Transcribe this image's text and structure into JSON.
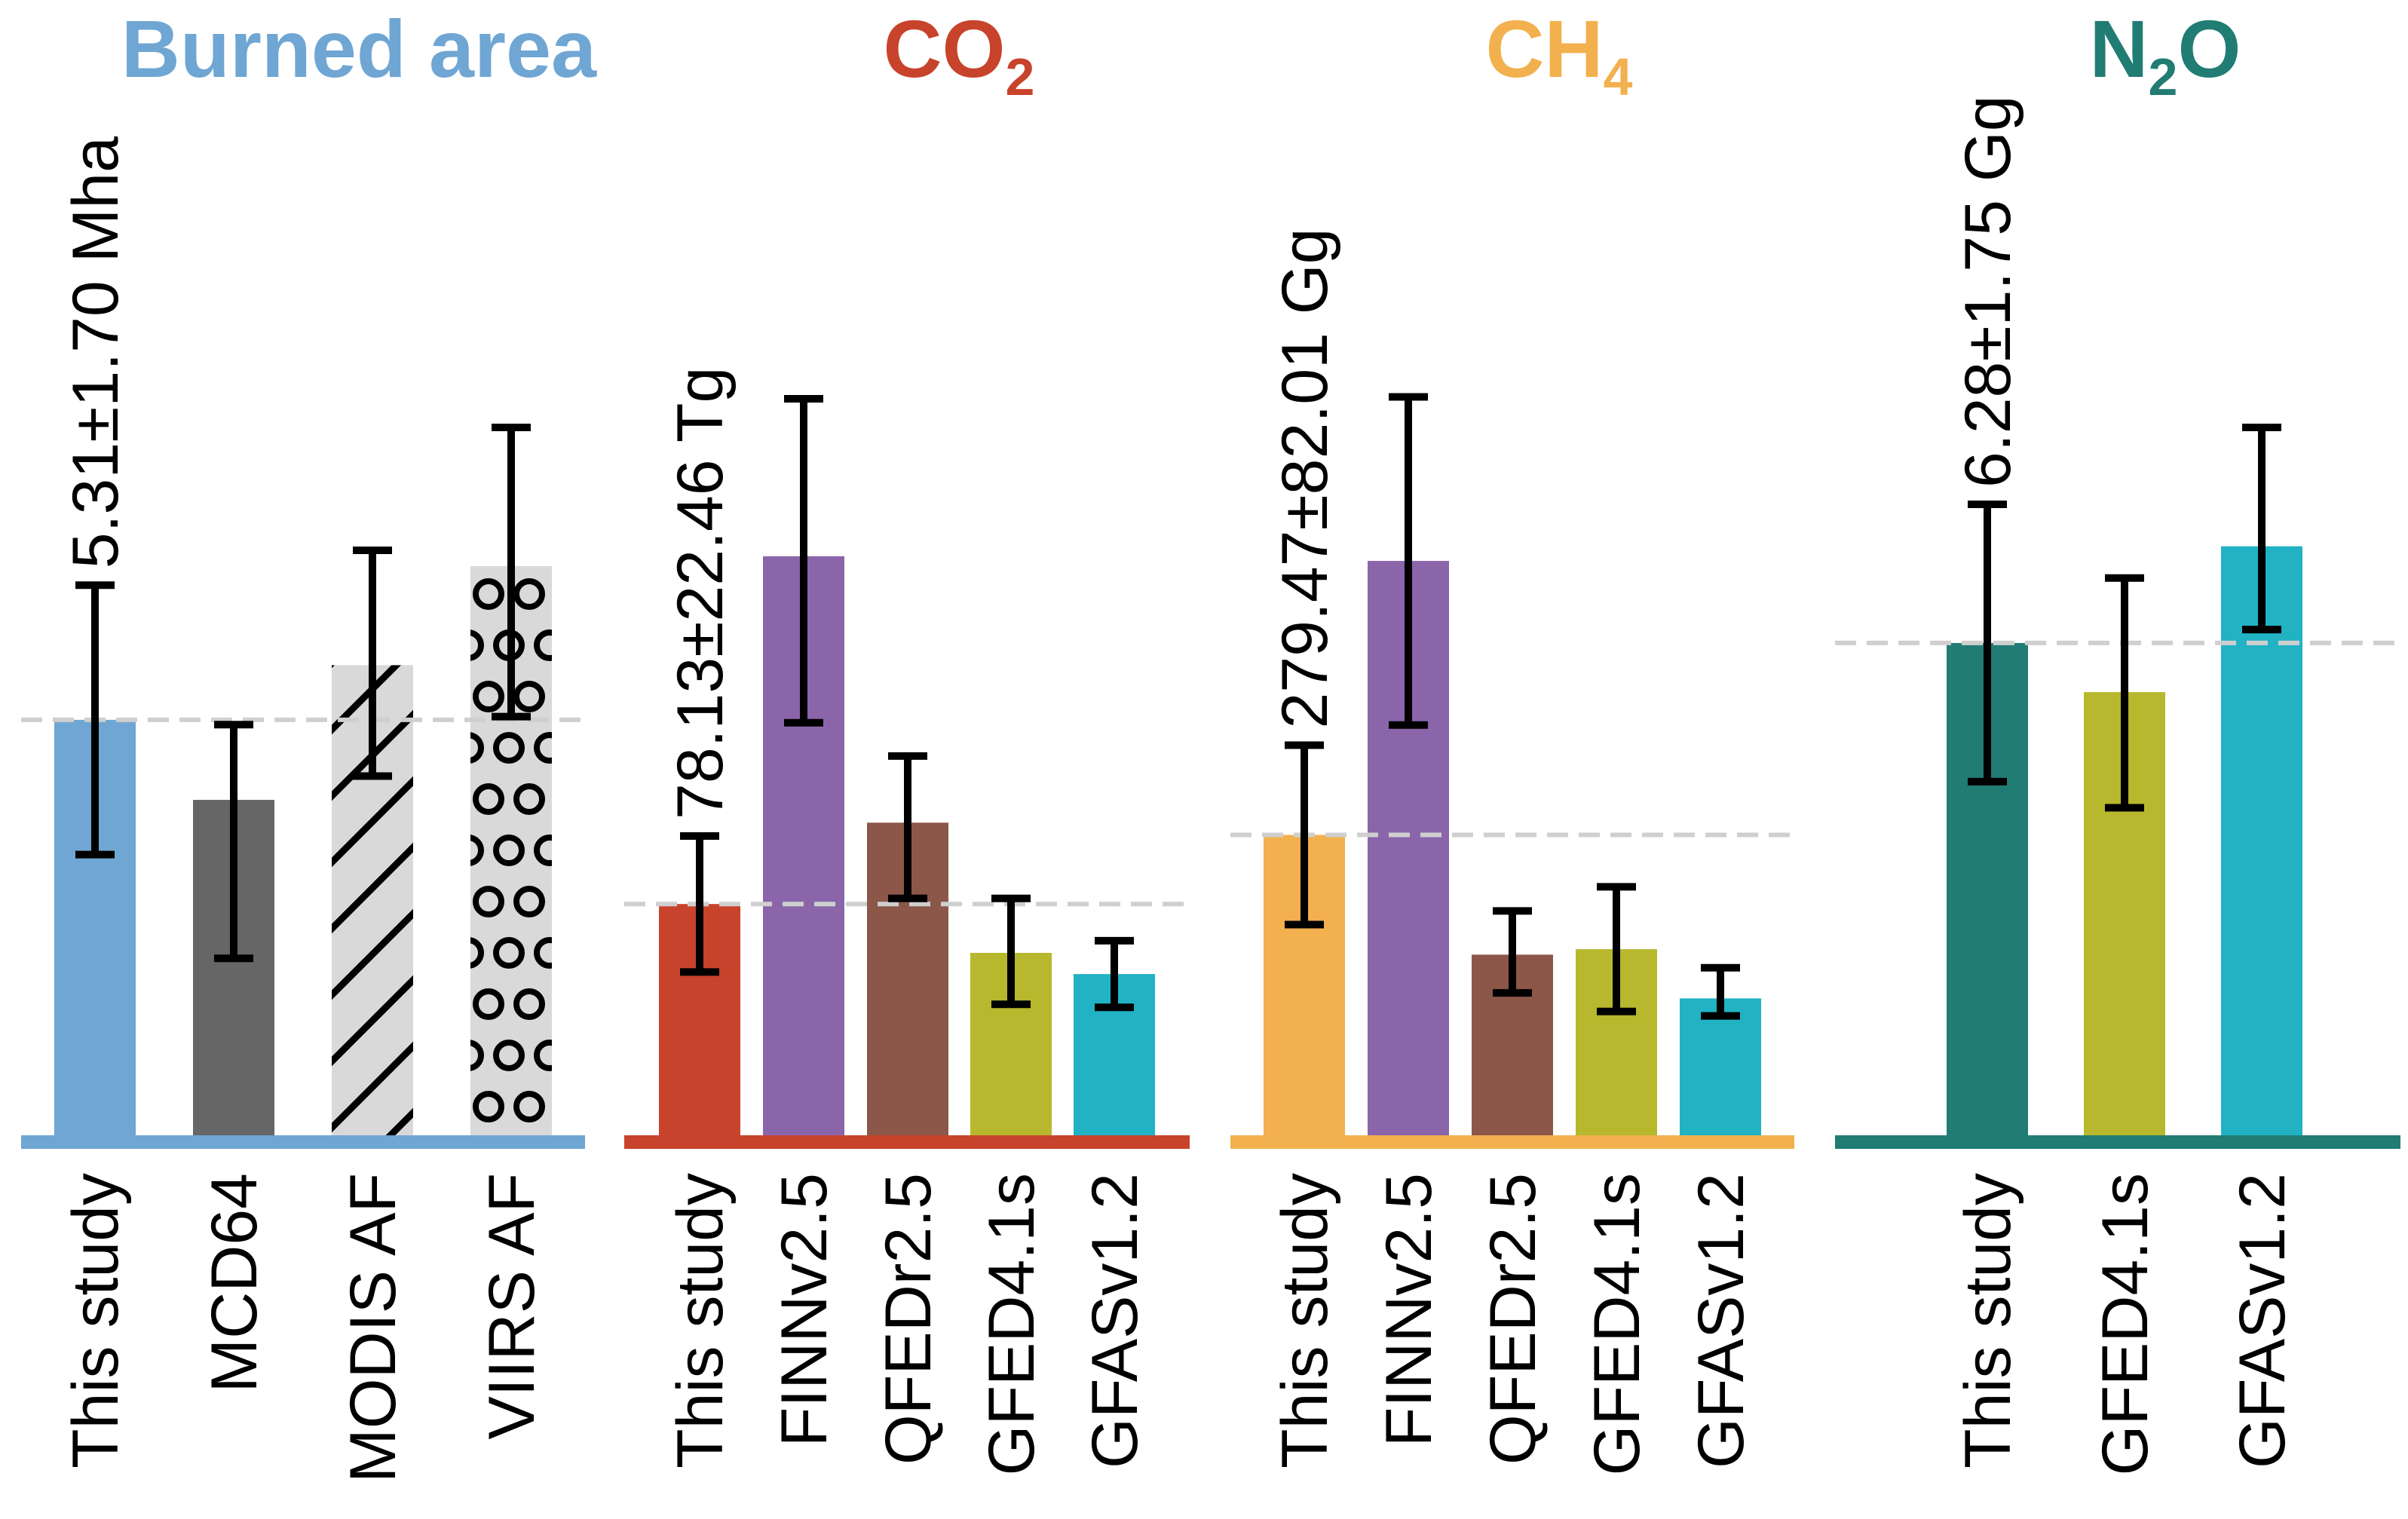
{
  "chart_data": [
    {
      "type": "bar",
      "title": "Burned area",
      "title_color": "#6fa6d3",
      "unit": "Mha",
      "categories": [
        "This study",
        "MCD64",
        "MODIS AF",
        "VIIRS AF"
      ],
      "values": [
        5.31,
        4.3,
        6.0,
        7.25
      ],
      "error_low": [
        3.61,
        2.3,
        4.6,
        5.35
      ],
      "error_high": [
        7.01,
        5.25,
        7.45,
        9.0
      ],
      "colors": [
        "#6fa6d3",
        "#666666",
        "#d9d9d9",
        "#d9d9d9"
      ],
      "patterns": [
        "none",
        "none",
        "hatch",
        "circles"
      ],
      "reference_value": 5.31,
      "annotation": "5.31±1.70 Mha",
      "baseline_color": "#6fa6d3",
      "ylim": [
        0,
        9.4
      ],
      "grid": false
    },
    {
      "type": "bar",
      "title": "CO",
      "title_sub": "2",
      "title_color": "#c8432b",
      "unit": "Tg",
      "categories": [
        "This study",
        "FINNv2.5",
        "QFEDr2.5",
        "GFED4.1s",
        "GFASv1.2"
      ],
      "values": [
        78.13,
        193.0,
        105.0,
        62.0,
        55.0
      ],
      "error_low": [
        55.67,
        138.0,
        80.0,
        45.0,
        44.0
      ],
      "error_high": [
        100.59,
        245.0,
        127.0,
        80.0,
        66.0
      ],
      "colors": [
        "#c8432b",
        "#8b65aa",
        "#8c5749",
        "#b7b82d",
        "#21b3c4"
      ],
      "reference_value": 78.13,
      "annotation": "78.13±22.46 Tg",
      "baseline_color": "#c8432b",
      "ylim": [
        0,
        246
      ],
      "grid": false
    },
    {
      "type": "bar",
      "title": "CH",
      "title_sub": "4",
      "title_color": "#f2b04e",
      "unit": "Gg",
      "categories": [
        "This study",
        "FINNv2.5",
        "QFEDr2.5",
        "GFED4.1s",
        "GFASv1.2"
      ],
      "values": [
        279.47,
        530.0,
        170.0,
        175.0,
        130.0
      ],
      "error_low": [
        197.46,
        380.0,
        135.0,
        118.0,
        114.0
      ],
      "error_high": [
        361.48,
        680.0,
        210.0,
        232.0,
        158.0
      ],
      "colors": [
        "#f2b04e",
        "#8b65aa",
        "#8c5749",
        "#b7b82d",
        "#21b3c4"
      ],
      "reference_value": 279.47,
      "annotation": "279.47±82.01 Gg",
      "baseline_color": "#f2b04e",
      "ylim": [
        0,
        681
      ],
      "grid": false
    },
    {
      "type": "bar",
      "title": "N",
      "title_sub": "2",
      "title_tail": "O",
      "title_color": "#217c74",
      "unit": "Gg",
      "categories": [
        "This study",
        "GFED4.1s",
        "GFASv1.2"
      ],
      "values": [
        6.28,
        5.66,
        7.5
      ],
      "error_low": [
        4.53,
        4.2,
        6.45
      ],
      "error_high": [
        8.03,
        7.1,
        9.0
      ],
      "colors": [
        "#217c74",
        "#b7b82d",
        "#21b3c4"
      ],
      "reference_value": 6.28,
      "annotation": "6.28±1.75 Gg",
      "baseline_color": "#217c74",
      "ylim": [
        0,
        9.4
      ],
      "grid": false
    }
  ]
}
